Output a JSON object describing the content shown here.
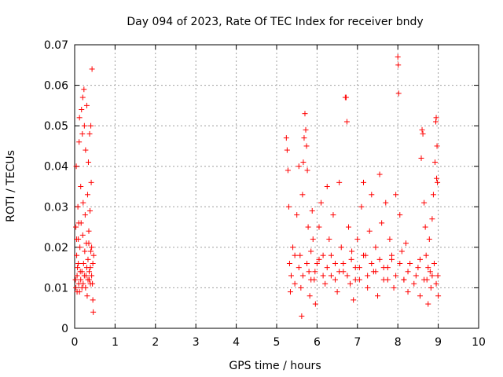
{
  "chart_data": {
    "type": "scatter",
    "title": "Day 094 of 2023, Rate Of TEC Index for receiver bndy",
    "xlabel": "GPS time / hours",
    "ylabel": "ROTI / TECUs",
    "xlim": [
      0,
      10
    ],
    "ylim": [
      0,
      0.07
    ],
    "x_ticks": [
      "0",
      "1",
      "2",
      "3",
      "4",
      "5",
      "6",
      "7",
      "8",
      "9",
      "10"
    ],
    "y_ticks": [
      "0",
      "0.01",
      "0.02",
      "0.03",
      "0.04",
      "0.05",
      "0.06",
      "0.07"
    ],
    "grid": true,
    "marker": "+",
    "color": "#ff0000",
    "series": [
      {
        "points": [
          [
            0.02,
            0.012
          ],
          [
            0.03,
            0.025
          ],
          [
            0.04,
            0.04
          ],
          [
            0.05,
            0.018
          ],
          [
            0.06,
            0.009
          ],
          [
            0.07,
            0.015
          ],
          [
            0.08,
            0.03
          ],
          [
            0.09,
            0.022
          ],
          [
            0.1,
            0.011
          ],
          [
            0.11,
            0.046
          ],
          [
            0.12,
            0.052
          ],
          [
            0.13,
            0.02
          ],
          [
            0.14,
            0.014
          ],
          [
            0.15,
            0.035
          ],
          [
            0.16,
            0.026
          ],
          [
            0.17,
            0.054
          ],
          [
            0.18,
            0.01
          ],
          [
            0.19,
            0.048
          ],
          [
            0.2,
            0.057
          ],
          [
            0.21,
            0.031
          ],
          [
            0.22,
            0.016
          ],
          [
            0.23,
            0.059
          ],
          [
            0.24,
            0.05
          ],
          [
            0.25,
            0.019
          ],
          [
            0.26,
            0.028
          ],
          [
            0.27,
            0.044
          ],
          [
            0.28,
            0.013
          ],
          [
            0.29,
            0.021
          ],
          [
            0.3,
            0.055
          ],
          [
            0.31,
            0.008
          ],
          [
            0.32,
            0.033
          ],
          [
            0.33,
            0.017
          ],
          [
            0.34,
            0.041
          ],
          [
            0.35,
            0.024
          ],
          [
            0.36,
            0.012
          ],
          [
            0.37,
            0.048
          ],
          [
            0.38,
            0.029
          ],
          [
            0.39,
            0.015
          ],
          [
            0.4,
            0.05
          ],
          [
            0.41,
            0.036
          ],
          [
            0.42,
            0.02
          ],
          [
            0.43,
            0.064
          ],
          [
            0.44,
            0.011
          ],
          [
            0.45,
            0.007
          ],
          [
            0.46,
            0.004
          ],
          [
            0.47,
            0.018
          ],
          [
            0.03,
            0.01
          ],
          [
            0.06,
            0.013
          ],
          [
            0.09,
            0.016
          ],
          [
            0.12,
            0.009
          ],
          [
            0.15,
            0.012
          ],
          [
            0.18,
            0.014
          ],
          [
            0.21,
            0.011
          ],
          [
            0.24,
            0.013
          ],
          [
            0.27,
            0.01
          ],
          [
            0.3,
            0.015
          ],
          [
            0.33,
            0.012
          ],
          [
            0.36,
            0.014
          ],
          [
            0.39,
            0.011
          ],
          [
            0.42,
            0.013
          ],
          [
            0.45,
            0.016
          ],
          [
            0.05,
            0.022
          ],
          [
            0.1,
            0.026
          ],
          [
            0.2,
            0.023
          ],
          [
            0.35,
            0.021
          ],
          [
            0.4,
            0.019
          ],
          [
            5.24,
            0.047
          ],
          [
            5.26,
            0.044
          ],
          [
            5.28,
            0.039
          ],
          [
            5.3,
            0.03
          ],
          [
            5.32,
            0.016
          ],
          [
            5.34,
            0.009
          ],
          [
            5.36,
            0.013
          ],
          [
            5.4,
            0.02
          ],
          [
            5.45,
            0.011
          ],
          [
            5.5,
            0.028
          ],
          [
            5.55,
            0.04
          ],
          [
            5.58,
            0.018
          ],
          [
            5.6,
            0.01
          ],
          [
            5.62,
            0.003
          ],
          [
            5.64,
            0.033
          ],
          [
            5.66,
            0.041
          ],
          [
            5.68,
            0.047
          ],
          [
            5.7,
            0.053
          ],
          [
            5.72,
            0.049
          ],
          [
            5.74,
            0.045
          ],
          [
            5.76,
            0.039
          ],
          [
            5.78,
            0.025
          ],
          [
            5.8,
            0.014
          ],
          [
            5.82,
            0.008
          ],
          [
            5.85,
            0.019
          ],
          [
            5.88,
            0.029
          ],
          [
            5.9,
            0.022
          ],
          [
            5.93,
            0.012
          ],
          [
            5.96,
            0.006
          ],
          [
            6.0,
            0.016
          ],
          [
            6.05,
            0.025
          ],
          [
            6.1,
            0.031
          ],
          [
            6.15,
            0.018
          ],
          [
            6.2,
            0.011
          ],
          [
            6.25,
            0.035
          ],
          [
            6.3,
            0.022
          ],
          [
            6.35,
            0.013
          ],
          [
            6.4,
            0.028
          ],
          [
            6.45,
            0.016
          ],
          [
            6.5,
            0.009
          ],
          [
            6.55,
            0.036
          ],
          [
            6.6,
            0.02
          ],
          [
            6.65,
            0.014
          ],
          [
            6.7,
            0.057
          ],
          [
            6.72,
            0.057
          ],
          [
            6.74,
            0.051
          ],
          [
            6.78,
            0.025
          ],
          [
            6.82,
            0.011
          ],
          [
            6.86,
            0.019
          ],
          [
            6.9,
            0.007
          ],
          [
            6.95,
            0.015
          ],
          [
            7.0,
            0.022
          ],
          [
            7.05,
            0.012
          ],
          [
            7.1,
            0.03
          ],
          [
            7.15,
            0.036
          ],
          [
            7.2,
            0.018
          ],
          [
            7.25,
            0.01
          ],
          [
            7.3,
            0.024
          ],
          [
            7.35,
            0.033
          ],
          [
            7.4,
            0.014
          ],
          [
            7.45,
            0.02
          ],
          [
            7.5,
            0.008
          ],
          [
            7.55,
            0.038
          ],
          [
            7.6,
            0.026
          ],
          [
            7.65,
            0.015
          ],
          [
            7.7,
            0.031
          ],
          [
            7.75,
            0.012
          ],
          [
            7.8,
            0.022
          ],
          [
            7.85,
            0.017
          ],
          [
            7.9,
            0.01
          ],
          [
            7.95,
            0.033
          ],
          [
            8.0,
            0.067
          ],
          [
            8.01,
            0.065
          ],
          [
            8.02,
            0.058
          ],
          [
            8.05,
            0.028
          ],
          [
            8.1,
            0.019
          ],
          [
            8.15,
            0.012
          ],
          [
            8.2,
            0.021
          ],
          [
            8.25,
            0.009
          ],
          [
            8.3,
            0.016
          ],
          [
            8.4,
            0.011
          ],
          [
            8.5,
            0.015
          ],
          [
            8.55,
            0.008
          ],
          [
            8.58,
            0.042
          ],
          [
            8.6,
            0.049
          ],
          [
            8.62,
            0.048
          ],
          [
            8.65,
            0.031
          ],
          [
            8.68,
            0.025
          ],
          [
            8.7,
            0.018
          ],
          [
            8.72,
            0.012
          ],
          [
            8.75,
            0.006
          ],
          [
            8.78,
            0.022
          ],
          [
            8.8,
            0.014
          ],
          [
            8.82,
            0.01
          ],
          [
            8.85,
            0.027
          ],
          [
            8.88,
            0.033
          ],
          [
            8.9,
            0.016
          ],
          [
            8.92,
            0.041
          ],
          [
            8.94,
            0.051
          ],
          [
            8.95,
            0.052
          ],
          [
            8.96,
            0.037
          ],
          [
            8.97,
            0.045
          ],
          [
            8.98,
            0.036
          ],
          [
            8.99,
            0.013
          ],
          [
            9.0,
            0.008
          ],
          [
            5.45,
            0.018
          ],
          [
            5.55,
            0.015
          ],
          [
            5.65,
            0.013
          ],
          [
            5.75,
            0.016
          ],
          [
            5.85,
            0.012
          ],
          [
            5.95,
            0.014
          ],
          [
            6.05,
            0.017
          ],
          [
            6.15,
            0.013
          ],
          [
            6.25,
            0.015
          ],
          [
            6.35,
            0.018
          ],
          [
            6.45,
            0.012
          ],
          [
            6.55,
            0.014
          ],
          [
            6.65,
            0.016
          ],
          [
            6.75,
            0.013
          ],
          [
            6.85,
            0.017
          ],
          [
            6.95,
            0.012
          ],
          [
            7.05,
            0.015
          ],
          [
            7.15,
            0.018
          ],
          [
            7.25,
            0.013
          ],
          [
            7.35,
            0.016
          ],
          [
            7.45,
            0.014
          ],
          [
            7.55,
            0.017
          ],
          [
            7.65,
            0.012
          ],
          [
            7.75,
            0.015
          ],
          [
            7.85,
            0.018
          ],
          [
            7.95,
            0.013
          ],
          [
            8.05,
            0.016
          ],
          [
            8.15,
            0.012
          ],
          [
            8.25,
            0.014
          ],
          [
            8.45,
            0.013
          ],
          [
            8.55,
            0.017
          ],
          [
            8.65,
            0.012
          ],
          [
            8.75,
            0.015
          ],
          [
            8.85,
            0.013
          ],
          [
            8.95,
            0.011
          ]
        ]
      }
    ]
  }
}
